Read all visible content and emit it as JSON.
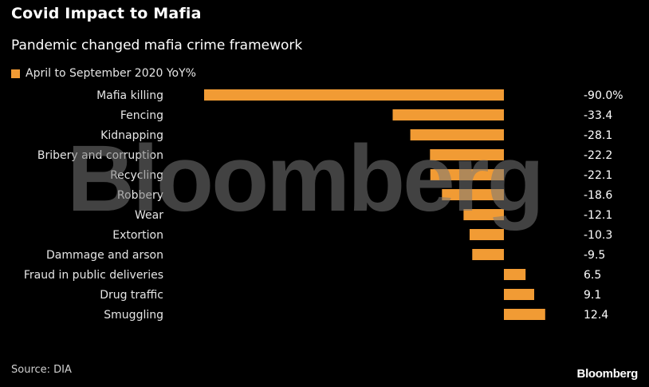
{
  "header": {
    "title": "Covid Impact to Mafia",
    "subtitle": "Pandemic changed mafia crime framework"
  },
  "legend": {
    "label": "April to September 2020 YoY%",
    "color": "#F19B34"
  },
  "watermark": "Bloomberg",
  "footer": {
    "source": "Source: DIA",
    "brand": "Bloomberg"
  },
  "chart_data": {
    "type": "bar",
    "orientation": "horizontal",
    "categories": [
      "Mafia killing",
      "Fencing",
      "Kidnapping",
      "Bribery and corruption",
      "Recycling",
      "Robbery",
      "Wear",
      "Extortion",
      "Dammage and arson",
      "Fraud in public deliveries",
      "Drug traffic",
      "Smuggling"
    ],
    "series": [
      {
        "name": "April to September 2020 YoY%",
        "values": [
          -90.0,
          -33.4,
          -28.1,
          -22.2,
          -22.1,
          -18.6,
          -12.1,
          -10.3,
          -9.5,
          6.5,
          9.1,
          12.4
        ],
        "labels": [
          "-90.0%",
          "-33.4",
          "-28.1",
          "-22.2",
          "-22.1",
          "-18.6",
          "-12.1",
          "-10.3",
          "-9.5",
          "6.5",
          "9.1",
          "12.4"
        ]
      }
    ],
    "xlim": [
      -90,
      12.4
    ],
    "bar_color": "#F19B34",
    "grid": false
  }
}
